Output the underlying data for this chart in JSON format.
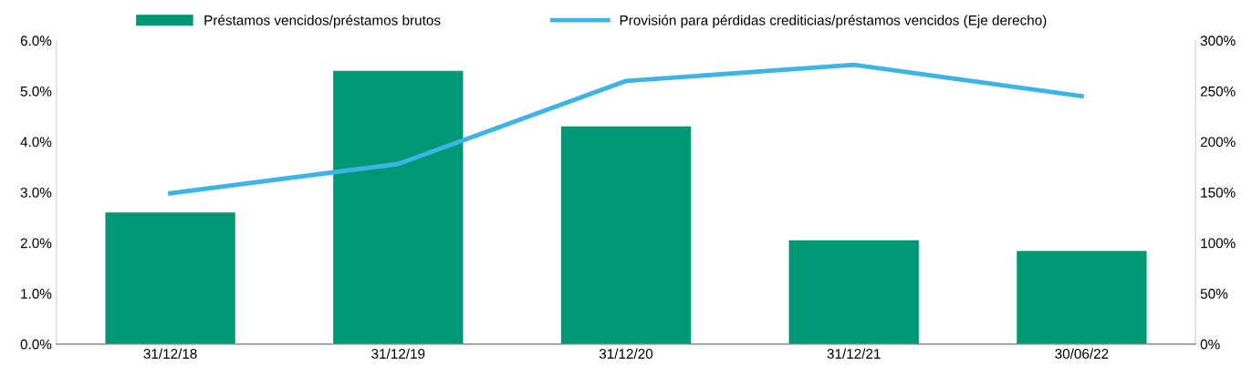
{
  "chart_data": {
    "type": "bar",
    "categories": [
      "31/12/18",
      "31/12/19",
      "31/12/20",
      "31/12/21",
      "30/06/22"
    ],
    "series": [
      {
        "name": "Préstamos vencidos/préstamos brutos",
        "color": "#009874",
        "values": [
          2.6,
          5.4,
          4.3,
          2.05,
          1.84
        ]
      },
      {
        "name": "Provisión para pérdidas crediticias/préstamos vencidos (Eje derecho)",
        "type": "line",
        "axis": "y2",
        "color": "#3db4e6",
        "values": [
          149,
          178,
          260,
          276,
          245
        ]
      }
    ],
    "ylim": [
      0,
      6
    ],
    "yticks": [
      {
        "value": 0,
        "label": "0.0%"
      },
      {
        "value": 1,
        "label": "1.0%"
      },
      {
        "value": 2,
        "label": "2.0%"
      },
      {
        "value": 3,
        "label": "3.0%"
      },
      {
        "value": 4,
        "label": "4.0%"
      },
      {
        "value": 5,
        "label": "5.0%"
      },
      {
        "value": 6,
        "label": "6.0%"
      }
    ],
    "y2lim": [
      0,
      300
    ],
    "y2ticks": [
      {
        "value": 0,
        "label": "0%"
      },
      {
        "value": 50,
        "label": "50%"
      },
      {
        "value": 100,
        "label": "100%"
      },
      {
        "value": 150,
        "label": "150%"
      },
      {
        "value": 200,
        "label": "200%"
      },
      {
        "value": 250,
        "label": "250%"
      },
      {
        "value": 300,
        "label": "300%"
      }
    ],
    "grid": false,
    "legend": "top",
    "marker": "none",
    "line_style": "solid"
  }
}
